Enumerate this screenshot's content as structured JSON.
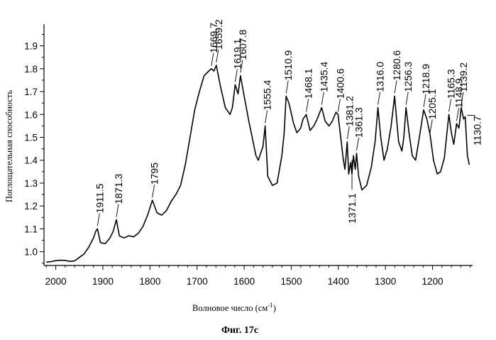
{
  "chart_data": {
    "type": "line",
    "ylabel": "Поглощательная способность",
    "xlabel": "Волновое число (см",
    "xlabel_sup": "-1",
    "xlabel_close": ")",
    "caption": "Фиг. 17с",
    "xlim": [
      2025,
      1115
    ],
    "ylim": [
      0.94,
      1.97
    ],
    "x_ticks": [
      "2000",
      "1900",
      "1800",
      "1700",
      "1600",
      "1500",
      "1400",
      "1300",
      "1200"
    ],
    "y_ticks": [
      "1.0",
      "1.1",
      "1.2",
      "1.3",
      "1.4",
      "1.5",
      "1.6",
      "1.7",
      "1.8",
      "1.9"
    ],
    "series": [
      {
        "x": [
          2020,
          2010,
          2000,
          1990,
          1980,
          1970,
          1960,
          1950,
          1940,
          1930,
          1920,
          1915,
          1911.5,
          1905,
          1895,
          1885,
          1878,
          1871.3,
          1865,
          1855,
          1845,
          1835,
          1825,
          1815,
          1805,
          1795,
          1785,
          1775,
          1765,
          1755,
          1745,
          1735,
          1725,
          1715,
          1705,
          1695,
          1685,
          1675,
          1669.7,
          1664,
          1659.2,
          1650,
          1640,
          1630,
          1625,
          1619.1,
          1613,
          1607.8,
          1600,
          1590,
          1580,
          1575,
          1570,
          1565,
          1560,
          1555.4,
          1550,
          1540,
          1530,
          1520,
          1515,
          1510.9,
          1505,
          1495,
          1488,
          1480,
          1475,
          1468.1,
          1460,
          1452,
          1445,
          1435.4,
          1428,
          1420,
          1413,
          1405,
          1400.6,
          1395,
          1390,
          1386,
          1381.2,
          1378,
          1374,
          1371.1,
          1368,
          1364,
          1361.3,
          1357,
          1350,
          1340,
          1330,
          1322,
          1316.0,
          1310,
          1303,
          1296,
          1288,
          1280.6,
          1272,
          1265,
          1261,
          1256.3,
          1250,
          1243,
          1236,
          1228,
          1218.9,
          1212,
          1205.1,
          1198,
          1190,
          1183,
          1175,
          1165.3,
          1160,
          1155,
          1148.9,
          1144,
          1139.2,
          1134,
          1130.7,
          1126,
          1122
        ],
        "y": [
          0.955,
          0.957,
          0.961,
          0.963,
          0.962,
          0.958,
          0.96,
          0.975,
          0.99,
          1.02,
          1.06,
          1.09,
          1.1,
          1.04,
          1.035,
          1.06,
          1.09,
          1.14,
          1.07,
          1.06,
          1.07,
          1.065,
          1.08,
          1.11,
          1.16,
          1.225,
          1.17,
          1.16,
          1.18,
          1.22,
          1.25,
          1.29,
          1.38,
          1.5,
          1.62,
          1.7,
          1.77,
          1.79,
          1.8,
          1.79,
          1.815,
          1.72,
          1.63,
          1.6,
          1.63,
          1.73,
          1.69,
          1.77,
          1.68,
          1.57,
          1.47,
          1.42,
          1.4,
          1.43,
          1.46,
          1.55,
          1.33,
          1.29,
          1.3,
          1.42,
          1.52,
          1.68,
          1.65,
          1.56,
          1.52,
          1.54,
          1.58,
          1.6,
          1.53,
          1.55,
          1.58,
          1.63,
          1.57,
          1.55,
          1.57,
          1.61,
          1.6,
          1.5,
          1.41,
          1.36,
          1.48,
          1.34,
          1.39,
          1.34,
          1.42,
          1.36,
          1.43,
          1.33,
          1.27,
          1.29,
          1.37,
          1.48,
          1.63,
          1.5,
          1.4,
          1.45,
          1.55,
          1.68,
          1.48,
          1.44,
          1.5,
          1.63,
          1.52,
          1.42,
          1.4,
          1.5,
          1.62,
          1.58,
          1.51,
          1.4,
          1.34,
          1.35,
          1.41,
          1.6,
          1.52,
          1.47,
          1.56,
          1.54,
          1.63,
          1.58,
          1.59,
          1.42,
          1.38
        ]
      }
    ],
    "annotations": [
      {
        "text": "1911.5",
        "x": 1911.5,
        "y": 1.1
      },
      {
        "text": "1871.3",
        "x": 1871.3,
        "y": 1.14
      },
      {
        "text": "1795",
        "x": 1795,
        "y": 1.225
      },
      {
        "text": "1669.7",
        "x": 1669.7,
        "y": 1.8
      },
      {
        "text": "1659.2",
        "x": 1659.2,
        "y": 1.815
      },
      {
        "text": "1619.1",
        "x": 1619.1,
        "y": 1.73
      },
      {
        "text": "1607.8",
        "x": 1607.8,
        "y": 1.77
      },
      {
        "text": "1555.4",
        "x": 1555.4,
        "y": 1.55
      },
      {
        "text": "1510.9",
        "x": 1510.9,
        "y": 1.68
      },
      {
        "text": "1468.1",
        "x": 1468.1,
        "y": 1.6
      },
      {
        "text": "1435.4",
        "x": 1435.4,
        "y": 1.63
      },
      {
        "text": "1400.6",
        "x": 1400.6,
        "y": 1.6
      },
      {
        "text": "1381.2",
        "x": 1381.2,
        "y": 1.48
      },
      {
        "text": "1361.3",
        "x": 1361.3,
        "y": 1.43
      },
      {
        "text": "1371.1",
        "x": 1371.1,
        "y": 1.42
      },
      {
        "text": "1316.0",
        "x": 1316.0,
        "y": 1.63
      },
      {
        "text": "1280.6",
        "x": 1280.6,
        "y": 1.68
      },
      {
        "text": "1256.3",
        "x": 1256.3,
        "y": 1.63
      },
      {
        "text": "1218.9",
        "x": 1218.9,
        "y": 1.62
      },
      {
        "text": "1205.1",
        "x": 1205.1,
        "y": 1.51
      },
      {
        "text": "1165.3",
        "x": 1165.3,
        "y": 1.6
      },
      {
        "text": "1148.9",
        "x": 1148.9,
        "y": 1.56
      },
      {
        "text": "1139.2",
        "x": 1139.2,
        "y": 1.63
      },
      {
        "text": "1130.7",
        "x": 1130.7,
        "y": 1.59
      }
    ],
    "grid": false,
    "legend": "none"
  }
}
